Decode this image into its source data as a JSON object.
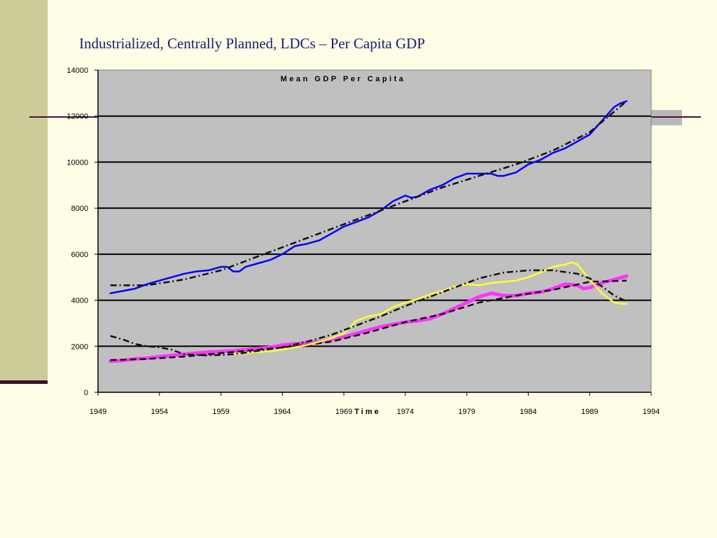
{
  "slide": {
    "title": "Industrialized, Centrally Planned, LDCs – Per Capita GDP",
    "colors": {
      "background": "#fffde6",
      "side_bar": "#cccc99",
      "rule": "#4a1040",
      "title_text": "#1a1a7a"
    }
  },
  "chart_data": {
    "type": "line",
    "title": "Mean GDP Per Capita",
    "xlabel": "Time",
    "ylabel": "",
    "xlim": [
      1949,
      1994
    ],
    "ylim": [
      0,
      14000
    ],
    "x_ticks": [
      "1949",
      "1954",
      "1959",
      "1964",
      "1969",
      "1974",
      "1979",
      "1984",
      "1989",
      "1994"
    ],
    "y_ticks": [
      "0",
      "2000",
      "4000",
      "6000",
      "8000",
      "10000",
      "12000",
      "14000"
    ],
    "grid": "horizontal major gridlines",
    "plot_background": "#c0c0c0",
    "legend": "none",
    "series": [
      {
        "color": "#0000ff",
        "style": "solid",
        "width": 2.5,
        "x": [
          1950,
          1951,
          1952,
          1953,
          1954,
          1955,
          1956,
          1957,
          1958,
          1959,
          1959.5,
          1960,
          1960.5,
          1961,
          1962,
          1963,
          1964,
          1965,
          1966,
          1967,
          1968,
          1969,
          1970,
          1971,
          1972,
          1973,
          1974,
          1974.5,
          1975,
          1976,
          1977,
          1978,
          1979,
          1980,
          1981,
          1981.5,
          1982,
          1983,
          1984,
          1985,
          1986,
          1987,
          1988,
          1989,
          1990,
          1991,
          1991.5,
          1992
        ],
        "y": [
          4300,
          4400,
          4500,
          4700,
          4850,
          5000,
          5150,
          5250,
          5300,
          5450,
          5450,
          5250,
          5250,
          5450,
          5600,
          5750,
          6000,
          6350,
          6450,
          6600,
          6900,
          7200,
          7400,
          7600,
          7900,
          8300,
          8550,
          8450,
          8500,
          8800,
          9000,
          9300,
          9500,
          9500,
          9500,
          9400,
          9400,
          9550,
          9900,
          10100,
          10400,
          10600,
          10900,
          11200,
          11800,
          12400,
          12550,
          12650
        ]
      },
      {
        "color": "#111111",
        "style": "dashdot",
        "width": 2.5,
        "x": [
          1950,
          1953,
          1956,
          1959,
          1962,
          1965,
          1968,
          1971,
          1974,
          1977,
          1980,
          1983,
          1986,
          1989,
          1992
        ],
        "y": [
          4650,
          4650,
          4900,
          5300,
          5900,
          6500,
          7100,
          7700,
          8300,
          8900,
          9400,
          9900,
          10500,
          11300,
          12650
        ]
      },
      {
        "color": "#ff33ff",
        "style": "solid",
        "width": 5,
        "x": [
          1950,
          1951,
          1952,
          1953,
          1954,
          1955,
          1956,
          1957,
          1958,
          1959,
          1960,
          1961,
          1962,
          1963,
          1964,
          1965,
          1966,
          1967,
          1968,
          1969,
          1970,
          1971,
          1972,
          1973,
          1974,
          1975,
          1976,
          1977,
          1978,
          1979,
          1980,
          1981,
          1982,
          1983,
          1984,
          1985,
          1986,
          1987,
          1988,
          1988.5,
          1989,
          1990,
          1991,
          1992
        ],
        "y": [
          1350,
          1380,
          1450,
          1480,
          1550,
          1600,
          1650,
          1700,
          1750,
          1770,
          1800,
          1850,
          1900,
          1950,
          2050,
          2100,
          2150,
          2200,
          2300,
          2400,
          2550,
          2700,
          2850,
          2950,
          3050,
          3100,
          3200,
          3400,
          3650,
          3900,
          4150,
          4300,
          4200,
          4200,
          4300,
          4350,
          4500,
          4700,
          4650,
          4500,
          4550,
          4750,
          4900,
          5050
        ]
      },
      {
        "color": "#111111",
        "style": "dashed",
        "width": 2.5,
        "x": [
          1950,
          1953,
          1956,
          1959,
          1962,
          1965,
          1968,
          1971,
          1974,
          1977,
          1980,
          1983,
          1986,
          1989,
          1992
        ],
        "y": [
          1400,
          1450,
          1550,
          1700,
          1850,
          2000,
          2200,
          2600,
          3050,
          3400,
          3900,
          4200,
          4450,
          4800,
          4850
        ]
      },
      {
        "color": "#ffff33",
        "style": "solid",
        "width": 2.5,
        "x": [
          1960,
          1961,
          1962,
          1963,
          1964,
          1965,
          1966,
          1967,
          1968,
          1969,
          1970,
          1971,
          1972,
          1973,
          1974,
          1975,
          1976,
          1977,
          1978,
          1979,
          1980,
          1981,
          1982,
          1983,
          1984,
          1985,
          1986,
          1987,
          1987.5,
          1988,
          1989,
          1990,
          1991,
          1991.5,
          1992
        ],
        "y": [
          1650,
          1700,
          1750,
          1780,
          1850,
          1950,
          2050,
          2200,
          2350,
          2550,
          3100,
          3300,
          3400,
          3700,
          3900,
          4050,
          4250,
          4400,
          4600,
          4700,
          4650,
          4750,
          4800,
          4850,
          5000,
          5200,
          5450,
          5550,
          5650,
          5550,
          4900,
          4300,
          3900,
          3850,
          3850
        ]
      },
      {
        "color": "#111111",
        "style": "dashdot",
        "width": 2.5,
        "x": [
          1950,
          1951,
          1952,
          1953,
          1954,
          1955,
          1956,
          1958,
          1960,
          1962,
          1964,
          1966,
          1968,
          1970,
          1972,
          1974,
          1976,
          1978,
          1980,
          1982,
          1984,
          1986,
          1988,
          1989,
          1990,
          1991,
          1992
        ],
        "y": [
          2450,
          2300,
          2100,
          2000,
          1950,
          1850,
          1650,
          1600,
          1650,
          1800,
          1950,
          2200,
          2500,
          2900,
          3300,
          3750,
          4150,
          4550,
          4950,
          5200,
          5300,
          5300,
          5150,
          4950,
          4600,
          4200,
          3950
        ]
      }
    ]
  }
}
